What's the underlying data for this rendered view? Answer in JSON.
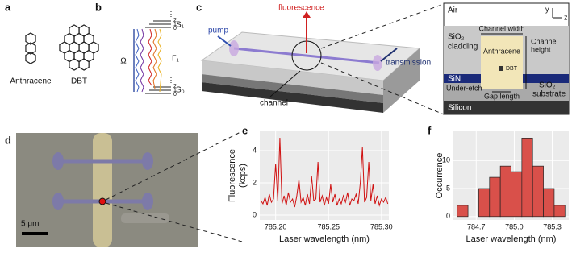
{
  "panel_labels": [
    "a",
    "b",
    "c",
    "d",
    "e",
    "f"
  ],
  "molecules": [
    "Anthracene",
    "DBT"
  ],
  "levels": {
    "upper": "S₁",
    "lower": "S₀",
    "pump": "Ω",
    "decay": "Γ₁",
    "vib": [
      "2",
      "1",
      "0"
    ]
  },
  "device": {
    "pump": "pump",
    "fluorescence": "fluorescence",
    "transmission": "transmission",
    "channel": "channel"
  },
  "cross_section": {
    "air": "Air",
    "axis_y": "y",
    "axis_z": "z",
    "cladding_1": "SiO₂",
    "cladding_2": "cladding",
    "channel_width": "Channel width",
    "channel_height_1": "Channel",
    "channel_height_2": "height",
    "anthracene": "Anthracene",
    "dbt": "DBT",
    "sin": "SiN",
    "under_etch": "Under-etch",
    "gap_length": "Gap length",
    "substrate_1": "SiO₂",
    "substrate_2": "substrate",
    "silicon": "Silicon"
  },
  "micrograph": {
    "scale": "5 μm"
  },
  "chart_data": [
    {
      "type": "line",
      "xlabel": "Laser wavelength (nm)",
      "ylabel": "Fluorescence",
      "ylabel_unit": "(kcps)",
      "color": "#d01010",
      "grid": true,
      "xlim": [
        785.185,
        785.307
      ],
      "ylim": [
        -0.3,
        5.2
      ],
      "xticks": [
        {
          "value": 785.2,
          "label": "785.20"
        },
        785.25,
        {
          "value": 785.3,
          "label": "785.30"
        }
      ],
      "yticks": [
        0,
        2,
        4
      ],
      "x": [
        785.186,
        785.188,
        785.19,
        785.192,
        785.194,
        785.196,
        785.198,
        785.2,
        785.202,
        785.204,
        785.206,
        785.208,
        785.21,
        785.212,
        785.214,
        785.216,
        785.218,
        785.22,
        785.222,
        785.224,
        785.226,
        785.228,
        785.23,
        785.232,
        785.234,
        785.236,
        785.238,
        785.24,
        785.242,
        785.244,
        785.246,
        785.248,
        785.25,
        785.252,
        785.254,
        785.256,
        785.258,
        785.26,
        785.262,
        785.264,
        785.266,
        785.268,
        785.27,
        785.272,
        785.274,
        785.276,
        785.278,
        785.28,
        785.282,
        785.284,
        785.286,
        785.288,
        785.29,
        785.292,
        785.294,
        785.296,
        785.298,
        785.3,
        785.302,
        785.304,
        785.306
      ],
      "values": [
        0.9,
        0.7,
        1.1,
        0.6,
        1.3,
        0.8,
        1.0,
        3.2,
        0.9,
        4.8,
        0.7,
        1.2,
        0.6,
        1.4,
        0.8,
        1.0,
        0.5,
        1.2,
        2.2,
        0.8,
        1.1,
        0.6,
        1.3,
        0.7,
        2.4,
        0.9,
        1.0,
        3.3,
        0.8,
        1.2,
        0.6,
        1.1,
        0.7,
        1.9,
        0.8,
        1.3,
        0.6,
        1.0,
        0.7,
        1.2,
        0.8,
        1.4,
        0.6,
        1.0,
        0.9,
        1.3,
        0.7,
        2.0,
        4.2,
        0.8,
        1.1,
        3.3,
        0.9,
        1.9,
        0.7,
        1.2,
        0.6,
        1.0,
        0.8,
        1.1,
        0.7
      ]
    },
    {
      "type": "histogram",
      "xlabel": "Laser wavelength (nm)",
      "ylabel": "Occurrence",
      "color": "#d9504a",
      "grid": true,
      "xlim": [
        784.52,
        785.43
      ],
      "ylim": [
        -0.6,
        15.2
      ],
      "xticks": [
        784.7,
        {
          "value": 785,
          "label": "785.0"
        },
        785.3
      ],
      "yticks": [
        0,
        5,
        10
      ],
      "bins": [
        784.55,
        784.635,
        784.72,
        784.805,
        784.89,
        784.975,
        785.06,
        785.145,
        785.23,
        785.315,
        785.4
      ],
      "values": [
        2,
        0,
        5,
        7,
        9,
        8,
        14,
        9,
        5,
        2
      ]
    }
  ]
}
